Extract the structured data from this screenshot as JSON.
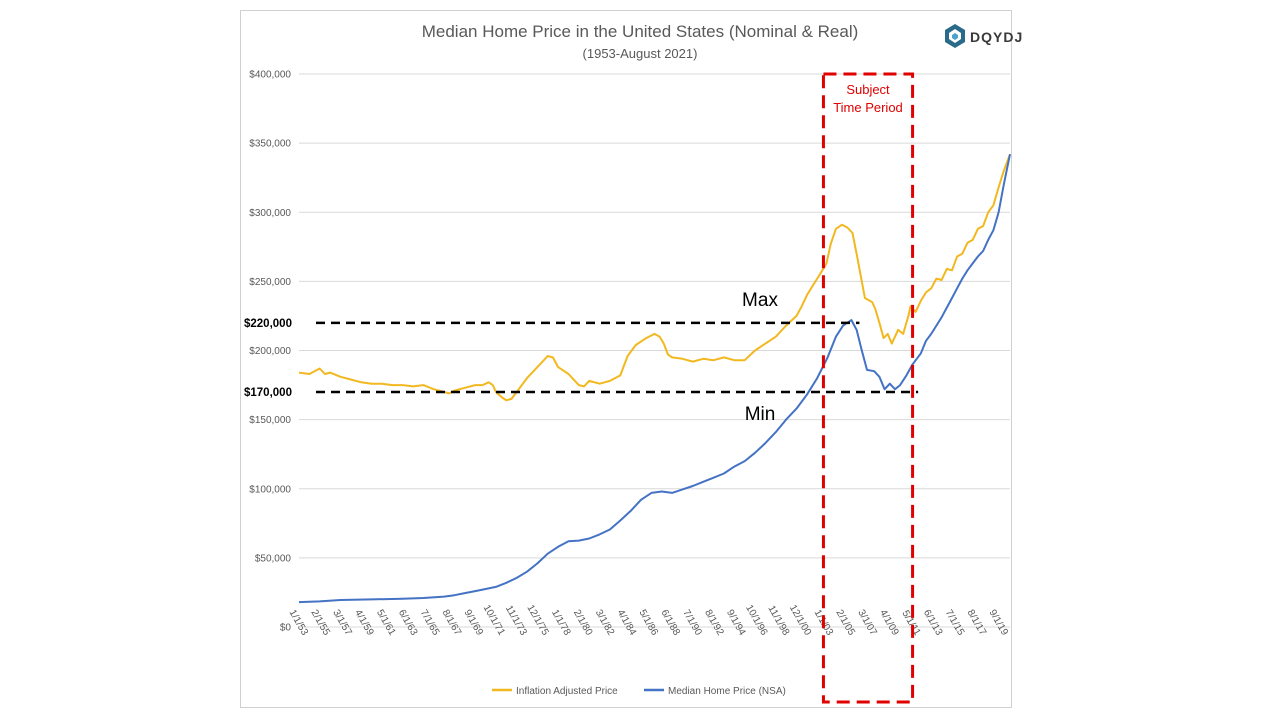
{
  "chart_data": {
    "type": "line",
    "title": "Median Home Price in the United States (Nominal & Real)",
    "subtitle": "(1953-August 2021)",
    "logo_text": "DQYDJ",
    "xlabel": "",
    "ylabel": "",
    "ylim": [
      0,
      400000
    ],
    "yticks": [
      {
        "value": 0,
        "label": "$0"
      },
      {
        "value": 50000,
        "label": "$50,000"
      },
      {
        "value": 100000,
        "label": "$100,000"
      },
      {
        "value": 150000,
        "label": "$150,000"
      },
      {
        "value": 200000,
        "label": "$200,000"
      },
      {
        "value": 250000,
        "label": "$250,000"
      },
      {
        "value": 300000,
        "label": "$300,000"
      },
      {
        "value": 350000,
        "label": "$350,000"
      },
      {
        "value": 400000,
        "label": "$400,000"
      }
    ],
    "xticks": [
      "1/1/53",
      "2/1/55",
      "3/1/57",
      "4/1/59",
      "5/1/61",
      "6/1/63",
      "7/1/65",
      "8/1/67",
      "9/1/69",
      "10/1/71",
      "11/1/73",
      "12/1/75",
      "1/1/78",
      "2/1/80",
      "3/1/82",
      "4/1/84",
      "5/1/86",
      "6/1/88",
      "7/1/90",
      "8/1/92",
      "9/1/94",
      "10/1/96",
      "11/1/98",
      "12/1/00",
      "1/1/03",
      "2/1/05",
      "3/1/07",
      "4/1/09",
      "5/1/11",
      "6/1/13",
      "7/1/15",
      "8/1/17",
      "9/1/19"
    ],
    "grid": "horizontal",
    "legend_position": "bottom",
    "series": [
      {
        "name": "Inflation Adjusted Price",
        "color": "#F2B81F",
        "points": [
          [
            1953.0,
            184000
          ],
          [
            1954.0,
            183000
          ],
          [
            1955.0,
            187000
          ],
          [
            1955.5,
            183000
          ],
          [
            1956.0,
            184000
          ],
          [
            1957.0,
            181000
          ],
          [
            1958.0,
            179000
          ],
          [
            1959.0,
            177000
          ],
          [
            1960.0,
            176000
          ],
          [
            1961.0,
            176000
          ],
          [
            1962.0,
            175000
          ],
          [
            1963.0,
            175000
          ],
          [
            1964.0,
            174000
          ],
          [
            1965.0,
            175000
          ],
          [
            1966.0,
            172000
          ],
          [
            1967.0,
            170000
          ],
          [
            1967.5,
            169000
          ],
          [
            1968.0,
            171000
          ],
          [
            1969.0,
            173000
          ],
          [
            1970.0,
            175000
          ],
          [
            1970.7,
            175000
          ],
          [
            1971.3,
            177000
          ],
          [
            1971.7,
            175000
          ],
          [
            1972.0,
            170000
          ],
          [
            1972.6,
            166000
          ],
          [
            1973.0,
            164000
          ],
          [
            1973.5,
            165000
          ],
          [
            1974.0,
            170000
          ],
          [
            1975.0,
            180000
          ],
          [
            1976.0,
            188000
          ],
          [
            1976.5,
            192000
          ],
          [
            1977.0,
            196000
          ],
          [
            1977.5,
            195000
          ],
          [
            1978.0,
            188000
          ],
          [
            1979.0,
            183000
          ],
          [
            1980.0,
            175000
          ],
          [
            1980.5,
            174000
          ],
          [
            1981.0,
            178000
          ],
          [
            1982.0,
            176000
          ],
          [
            1983.0,
            178000
          ],
          [
            1984.0,
            182000
          ],
          [
            1984.7,
            196000
          ],
          [
            1985.5,
            204000
          ],
          [
            1986.5,
            209000
          ],
          [
            1987.3,
            212000
          ],
          [
            1987.8,
            210000
          ],
          [
            1988.2,
            205000
          ],
          [
            1988.6,
            197000
          ],
          [
            1989.0,
            195000
          ],
          [
            1990.0,
            194000
          ],
          [
            1991.0,
            192000
          ],
          [
            1992.0,
            194000
          ],
          [
            1993.0,
            193000
          ],
          [
            1994.0,
            195000
          ],
          [
            1995.0,
            193000
          ],
          [
            1996.0,
            193000
          ],
          [
            1997.0,
            200000
          ],
          [
            1998.0,
            205000
          ],
          [
            1999.0,
            210000
          ],
          [
            2000.0,
            218000
          ],
          [
            2001.0,
            225000
          ],
          [
            2001.5,
            232000
          ],
          [
            2002.0,
            240000
          ],
          [
            2002.5,
            246000
          ],
          [
            2003.0,
            252000
          ],
          [
            2003.5,
            258000
          ],
          [
            2003.9,
            263000
          ],
          [
            2004.3,
            277000
          ],
          [
            2004.8,
            288000
          ],
          [
            2005.4,
            291000
          ],
          [
            2005.9,
            289000
          ],
          [
            2006.4,
            285000
          ],
          [
            2006.8,
            270000
          ],
          [
            2007.3,
            250000
          ],
          [
            2007.6,
            238000
          ],
          [
            2008.3,
            235000
          ],
          [
            2008.6,
            230000
          ],
          [
            2009.0,
            220000
          ],
          [
            2009.4,
            209000
          ],
          [
            2009.8,
            212000
          ],
          [
            2010.2,
            205000
          ],
          [
            2010.5,
            210000
          ],
          [
            2010.8,
            215000
          ],
          [
            2011.3,
            212000
          ],
          [
            2011.8,
            225000
          ],
          [
            2012.0,
            232000
          ],
          [
            2012.5,
            228000
          ],
          [
            2013.0,
            236000
          ],
          [
            2013.5,
            242000
          ],
          [
            2014.0,
            245000
          ],
          [
            2014.5,
            252000
          ],
          [
            2015.0,
            251000
          ],
          [
            2015.5,
            259000
          ],
          [
            2016.0,
            258000
          ],
          [
            2016.5,
            268000
          ],
          [
            2017.0,
            270000
          ],
          [
            2017.5,
            278000
          ],
          [
            2018.0,
            280000
          ],
          [
            2018.5,
            288000
          ],
          [
            2019.0,
            290000
          ],
          [
            2019.5,
            300000
          ],
          [
            2020.0,
            305000
          ],
          [
            2020.5,
            318000
          ],
          [
            2021.0,
            330000
          ],
          [
            2021.6,
            342000
          ]
        ]
      },
      {
        "name": "Median Home Price (NSA)",
        "color": "#4472C4",
        "points": [
          [
            1953.0,
            18000
          ],
          [
            1955.0,
            18500
          ],
          [
            1957.0,
            19500
          ],
          [
            1960.0,
            20000
          ],
          [
            1963.0,
            20500
          ],
          [
            1965.0,
            21000
          ],
          [
            1967.0,
            22000
          ],
          [
            1968.0,
            23000
          ],
          [
            1969.0,
            24500
          ],
          [
            1970.0,
            26000
          ],
          [
            1971.0,
            27500
          ],
          [
            1972.0,
            29000
          ],
          [
            1973.0,
            32000
          ],
          [
            1974.0,
            35500
          ],
          [
            1975.0,
            40000
          ],
          [
            1976.0,
            46000
          ],
          [
            1977.0,
            53000
          ],
          [
            1978.0,
            58000
          ],
          [
            1979.0,
            62000
          ],
          [
            1980.0,
            62500
          ],
          [
            1981.0,
            64000
          ],
          [
            1982.0,
            67000
          ],
          [
            1983.0,
            70500
          ],
          [
            1984.0,
            77000
          ],
          [
            1985.0,
            84000
          ],
          [
            1986.0,
            92000
          ],
          [
            1987.0,
            97000
          ],
          [
            1988.0,
            98000
          ],
          [
            1989.0,
            97000
          ],
          [
            1990.0,
            99500
          ],
          [
            1991.0,
            102000
          ],
          [
            1992.0,
            105000
          ],
          [
            1993.0,
            108000
          ],
          [
            1994.0,
            111000
          ],
          [
            1995.0,
            116000
          ],
          [
            1996.0,
            120000
          ],
          [
            1997.0,
            126000
          ],
          [
            1998.0,
            133000
          ],
          [
            1999.0,
            141000
          ],
          [
            2000.0,
            150000
          ],
          [
            2001.0,
            158000
          ],
          [
            2002.0,
            168000
          ],
          [
            2003.0,
            180000
          ],
          [
            2004.0,
            195000
          ],
          [
            2004.8,
            210000
          ],
          [
            2005.5,
            218000
          ],
          [
            2006.3,
            222000
          ],
          [
            2006.8,
            215000
          ],
          [
            2007.3,
            200000
          ],
          [
            2007.8,
            186000
          ],
          [
            2008.5,
            185000
          ],
          [
            2009.0,
            181000
          ],
          [
            2009.5,
            172000
          ],
          [
            2010.0,
            176000
          ],
          [
            2010.5,
            172000
          ],
          [
            2011.0,
            175000
          ],
          [
            2011.6,
            182000
          ],
          [
            2012.2,
            190000
          ],
          [
            2013.0,
            198000
          ],
          [
            2013.5,
            207000
          ],
          [
            2014.0,
            212000
          ],
          [
            2014.5,
            218000
          ],
          [
            2015.0,
            224000
          ],
          [
            2015.5,
            231000
          ],
          [
            2016.0,
            238000
          ],
          [
            2016.5,
            245000
          ],
          [
            2017.0,
            252000
          ],
          [
            2017.5,
            258000
          ],
          [
            2018.0,
            263000
          ],
          [
            2018.5,
            268000
          ],
          [
            2019.0,
            272000
          ],
          [
            2019.5,
            280000
          ],
          [
            2020.0,
            287000
          ],
          [
            2020.5,
            300000
          ],
          [
            2021.0,
            320000
          ],
          [
            2021.6,
            342000
          ]
        ]
      }
    ],
    "annotations": {
      "max_label": "Max",
      "min_label": "Min",
      "max_value_label": "$220,000",
      "min_value_label": "$170,000",
      "max_value": 220000,
      "min_value": 170000,
      "max_line_x": [
        1953.0,
        2006.3
      ],
      "min_line_x": [
        1953.0,
        2011.0
      ],
      "subject_box_label_1": "Subject",
      "subject_box_label_2": "Time Period",
      "subject_box_x": [
        2003.6,
        2012.2
      ],
      "subject_box_color": "#E00000"
    }
  }
}
